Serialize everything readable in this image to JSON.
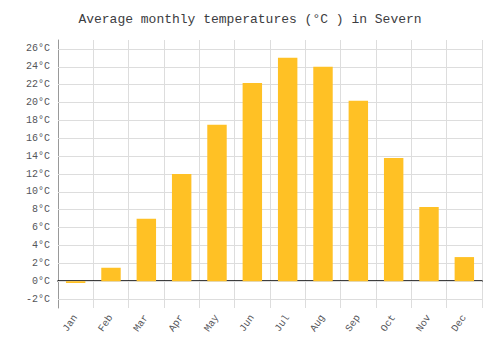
{
  "chart_data": {
    "type": "bar",
    "title": "Average monthly temperatures (°C ) in Severn",
    "categories": [
      "Jan",
      "Feb",
      "Mar",
      "Apr",
      "May",
      "Jun",
      "Jul",
      "Aug",
      "Sep",
      "Oct",
      "Nov",
      "Dec"
    ],
    "values": [
      -0.2,
      1.5,
      7.0,
      12.0,
      17.5,
      22.2,
      25.0,
      24.0,
      20.2,
      13.8,
      8.3,
      2.7
    ],
    "color": "#FFC125",
    "ylim": [
      -3,
      27
    ],
    "yticks": [
      {
        "value": -2,
        "label": "-2°C"
      },
      {
        "value": 0,
        "label": "0°C"
      },
      {
        "value": 2,
        "label": "2°C"
      },
      {
        "value": 4,
        "label": "4°C"
      },
      {
        "value": 6,
        "label": "6°C"
      },
      {
        "value": 8,
        "label": "8°C"
      },
      {
        "value": 10,
        "label": "10°C"
      },
      {
        "value": 12,
        "label": "12°C"
      },
      {
        "value": 14,
        "label": "14°C"
      },
      {
        "value": 16,
        "label": "16°C"
      },
      {
        "value": 18,
        "label": "18°C"
      },
      {
        "value": 20,
        "label": "20°C"
      },
      {
        "value": 22,
        "label": "22°C"
      },
      {
        "value": 24,
        "label": "24°C"
      },
      {
        "value": 26,
        "label": "26°C"
      }
    ],
    "grid": true
  }
}
